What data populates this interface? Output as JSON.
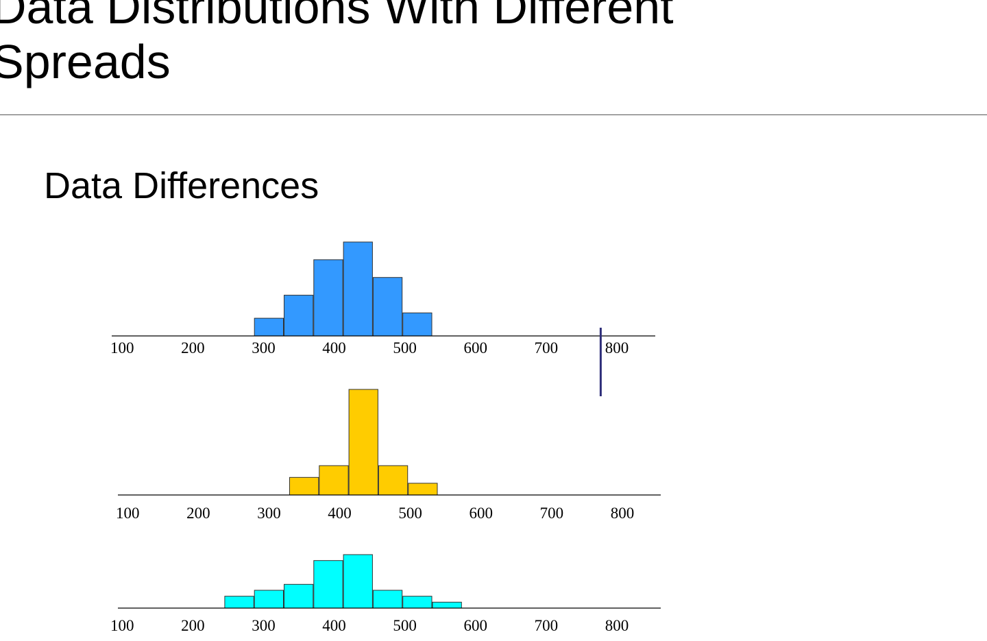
{
  "slide": {
    "title_line1": "Data Distributions With Different",
    "title_line2": "Spreads",
    "subtitle": "Data Differences"
  },
  "chart_data": [
    {
      "type": "bar",
      "title": "",
      "xlabel": "",
      "ylabel": "",
      "x_ticks": [
        "100",
        "200",
        "300",
        "400",
        "500",
        "600",
        "700",
        "800"
      ],
      "xlim": [
        100,
        870
      ],
      "bin_width": 42,
      "bins": [
        {
          "x": 300,
          "count": 1
        },
        {
          "x": 342,
          "count": 2.3
        },
        {
          "x": 384,
          "count": 4.3
        },
        {
          "x": 426,
          "count": 5.3
        },
        {
          "x": 468,
          "count": 3.3
        },
        {
          "x": 510,
          "count": 1.3
        }
      ],
      "ylim": [
        0,
        5.3
      ],
      "color": "#3399ff",
      "marker_x": 790,
      "marker_color": "#2e2e7a"
    },
    {
      "type": "bar",
      "title": "",
      "xlabel": "",
      "ylabel": "",
      "x_ticks": [
        "100",
        "200",
        "300",
        "400",
        "500",
        "600",
        "700",
        "800"
      ],
      "xlim": [
        100,
        870
      ],
      "bin_width": 42,
      "bins": [
        {
          "x": 342,
          "count": 1.5
        },
        {
          "x": 384,
          "count": 2.5
        },
        {
          "x": 426,
          "count": 9
        },
        {
          "x": 468,
          "count": 2.5
        },
        {
          "x": 510,
          "count": 1
        }
      ],
      "ylim": [
        0,
        9
      ],
      "color": "#ffcc00"
    },
    {
      "type": "bar",
      "title": "",
      "xlabel": "",
      "ylabel": "",
      "x_ticks": [
        "100",
        "200",
        "300",
        "400",
        "500",
        "600",
        "700",
        "800"
      ],
      "xlim": [
        100,
        870
      ],
      "bin_width": 42,
      "bins": [
        {
          "x": 258,
          "count": 2
        },
        {
          "x": 300,
          "count": 3
        },
        {
          "x": 342,
          "count": 4
        },
        {
          "x": 384,
          "count": 8
        },
        {
          "x": 426,
          "count": 9
        },
        {
          "x": 468,
          "count": 3
        },
        {
          "x": 510,
          "count": 2
        },
        {
          "x": 552,
          "count": 1
        }
      ],
      "ylim": [
        0,
        9
      ],
      "color": "#00ffff"
    }
  ]
}
